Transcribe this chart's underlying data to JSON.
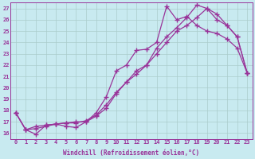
{
  "xlabel": "Windchill (Refroidissement éolien,°C)",
  "bg_color": "#c8eaf0",
  "grid_color": "#aacccc",
  "line_color": "#993399",
  "xlim": [
    -0.5,
    23.5
  ],
  "ylim": [
    15.5,
    27.5
  ],
  "xticks": [
    0,
    1,
    2,
    3,
    4,
    5,
    6,
    7,
    8,
    9,
    10,
    11,
    12,
    13,
    14,
    15,
    16,
    17,
    18,
    19,
    20,
    21,
    22,
    23
  ],
  "yticks": [
    16,
    17,
    18,
    19,
    20,
    21,
    22,
    23,
    24,
    25,
    26,
    27
  ],
  "line1_x": [
    0,
    1,
    2,
    3,
    4,
    5,
    6,
    7,
    8,
    9,
    10,
    11,
    12,
    13,
    14,
    15,
    16,
    17,
    18,
    19,
    20,
    21,
    22,
    23
  ],
  "line1_y": [
    17.8,
    16.3,
    15.9,
    16.7,
    16.8,
    16.6,
    16.5,
    17.0,
    17.8,
    19.2,
    21.5,
    22.0,
    23.3,
    23.4,
    24.0,
    27.2,
    26.0,
    26.3,
    25.5,
    25.0,
    24.8,
    24.3,
    23.5,
    21.3
  ],
  "line2_x": [
    0,
    1,
    2,
    3,
    4,
    5,
    6,
    7,
    8,
    9,
    10,
    11,
    12,
    13,
    14,
    15,
    16,
    17,
    18,
    19,
    20,
    21,
    22,
    23
  ],
  "line2_y": [
    17.8,
    16.3,
    16.6,
    16.7,
    16.8,
    16.9,
    17.0,
    17.0,
    17.5,
    18.2,
    19.5,
    20.5,
    21.5,
    22.0,
    23.0,
    24.0,
    25.0,
    25.5,
    26.2,
    27.0,
    26.5,
    25.5,
    24.5,
    21.3
  ],
  "line3_x": [
    0,
    1,
    2,
    3,
    4,
    5,
    6,
    7,
    8,
    9,
    10,
    11,
    12,
    13,
    14,
    15,
    16,
    17,
    18,
    19,
    20,
    21,
    22,
    23
  ],
  "line3_y": [
    17.8,
    16.3,
    16.4,
    16.6,
    16.8,
    16.9,
    16.9,
    17.1,
    17.6,
    18.5,
    19.6,
    20.5,
    21.2,
    22.0,
    23.5,
    24.5,
    25.3,
    26.2,
    27.3,
    27.0,
    26.0,
    25.5,
    24.5,
    21.3
  ],
  "marker": "+",
  "markersize": 4,
  "linewidth": 0.9,
  "tick_fontsize": 5.0,
  "xlabel_fontsize": 5.5
}
